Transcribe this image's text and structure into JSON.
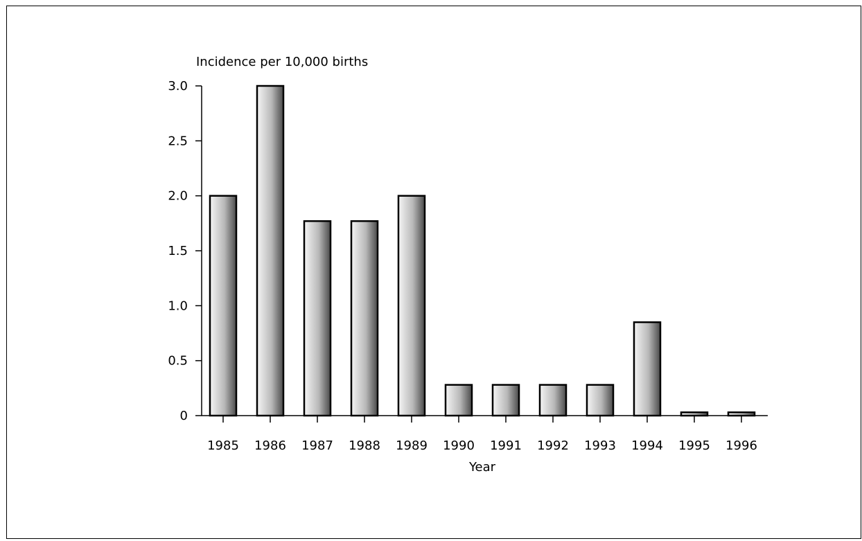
{
  "chart_data": {
    "type": "bar",
    "title": "",
    "ylabel": "Incidence per 10,000 births",
    "xlabel": "Year",
    "categories": [
      "1985",
      "1986",
      "1987",
      "1988",
      "1989",
      "1990",
      "1991",
      "1992",
      "1993",
      "1994",
      "1995",
      "1996"
    ],
    "values": [
      2.0,
      3.0,
      1.77,
      1.77,
      2.0,
      0.28,
      0.28,
      0.28,
      0.28,
      0.85,
      0.03,
      0.03
    ],
    "ylim": [
      0,
      3.0
    ],
    "yticks": [
      {
        "value": 0,
        "label": "0"
      },
      {
        "value": 0.5,
        "label": "0.5"
      },
      {
        "value": 1.0,
        "label": "1.0"
      },
      {
        "value": 1.5,
        "label": "1.5"
      },
      {
        "value": 2.0,
        "label": "2.0"
      },
      {
        "value": 2.5,
        "label": "2.5"
      },
      {
        "value": 3.0,
        "label": "3.0"
      }
    ],
    "grid": false,
    "legend": "none",
    "bar_fill": "gradient light grey to dark grey",
    "colors": {
      "bar_light": "#f5f5f5",
      "bar_mid": "#b8b8b8",
      "bar_dark": "#4a4a4a",
      "outline": "#000000"
    }
  }
}
